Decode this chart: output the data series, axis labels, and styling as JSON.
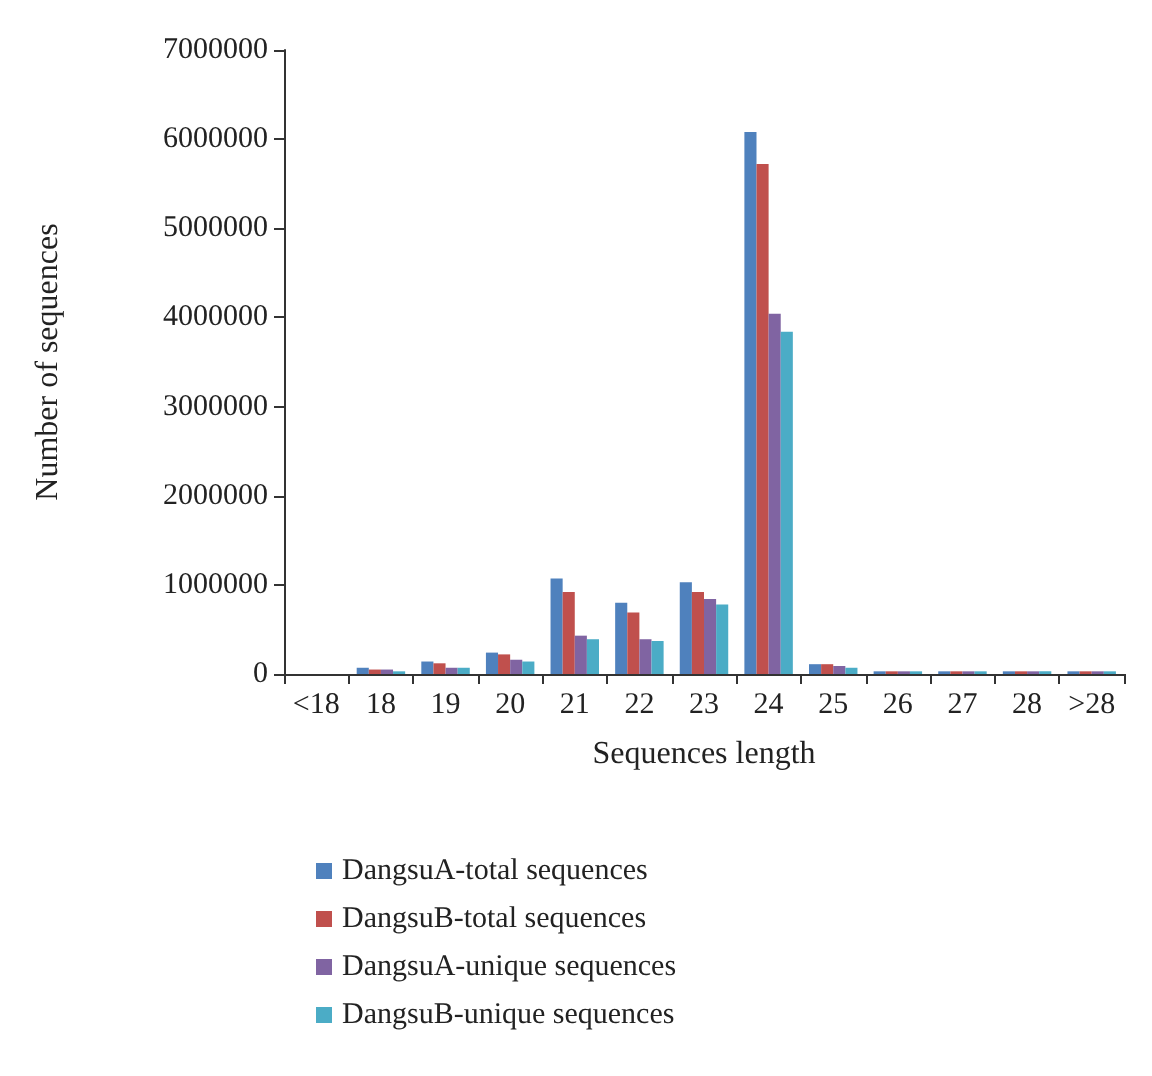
{
  "chart_data": {
    "type": "bar",
    "xlabel": "Sequences length",
    "ylabel": "Number of sequences",
    "categories": [
      "<18",
      "18",
      "19",
      "20",
      "21",
      "22",
      "23",
      "24",
      "25",
      "26",
      "27",
      "28",
      ">28"
    ],
    "series": [
      {
        "name": "DangsuA-total sequences",
        "color": "#4f81bd",
        "values": [
          0,
          70000,
          140000,
          240000,
          1070000,
          800000,
          1030000,
          6080000,
          110000,
          30000,
          30000,
          30000,
          30000
        ]
      },
      {
        "name": "DangsuB-total sequences",
        "color": "#c0504d",
        "values": [
          0,
          50000,
          120000,
          220000,
          920000,
          690000,
          920000,
          5720000,
          110000,
          30000,
          30000,
          30000,
          30000
        ]
      },
      {
        "name": "DangsuA-unique sequences",
        "color": "#8064a2",
        "values": [
          0,
          50000,
          70000,
          160000,
          430000,
          390000,
          840000,
          4040000,
          90000,
          30000,
          30000,
          30000,
          30000
        ]
      },
      {
        "name": "DangsuB-unique sequences",
        "color": "#4bacc6",
        "values": [
          0,
          30000,
          70000,
          140000,
          390000,
          370000,
          780000,
          3840000,
          70000,
          30000,
          30000,
          30000,
          30000
        ]
      }
    ],
    "ylim": [
      0,
      7000000
    ],
    "yticks": [
      0,
      1000000,
      2000000,
      3000000,
      4000000,
      5000000,
      6000000,
      7000000
    ],
    "grid": false,
    "legend": "bottom"
  }
}
